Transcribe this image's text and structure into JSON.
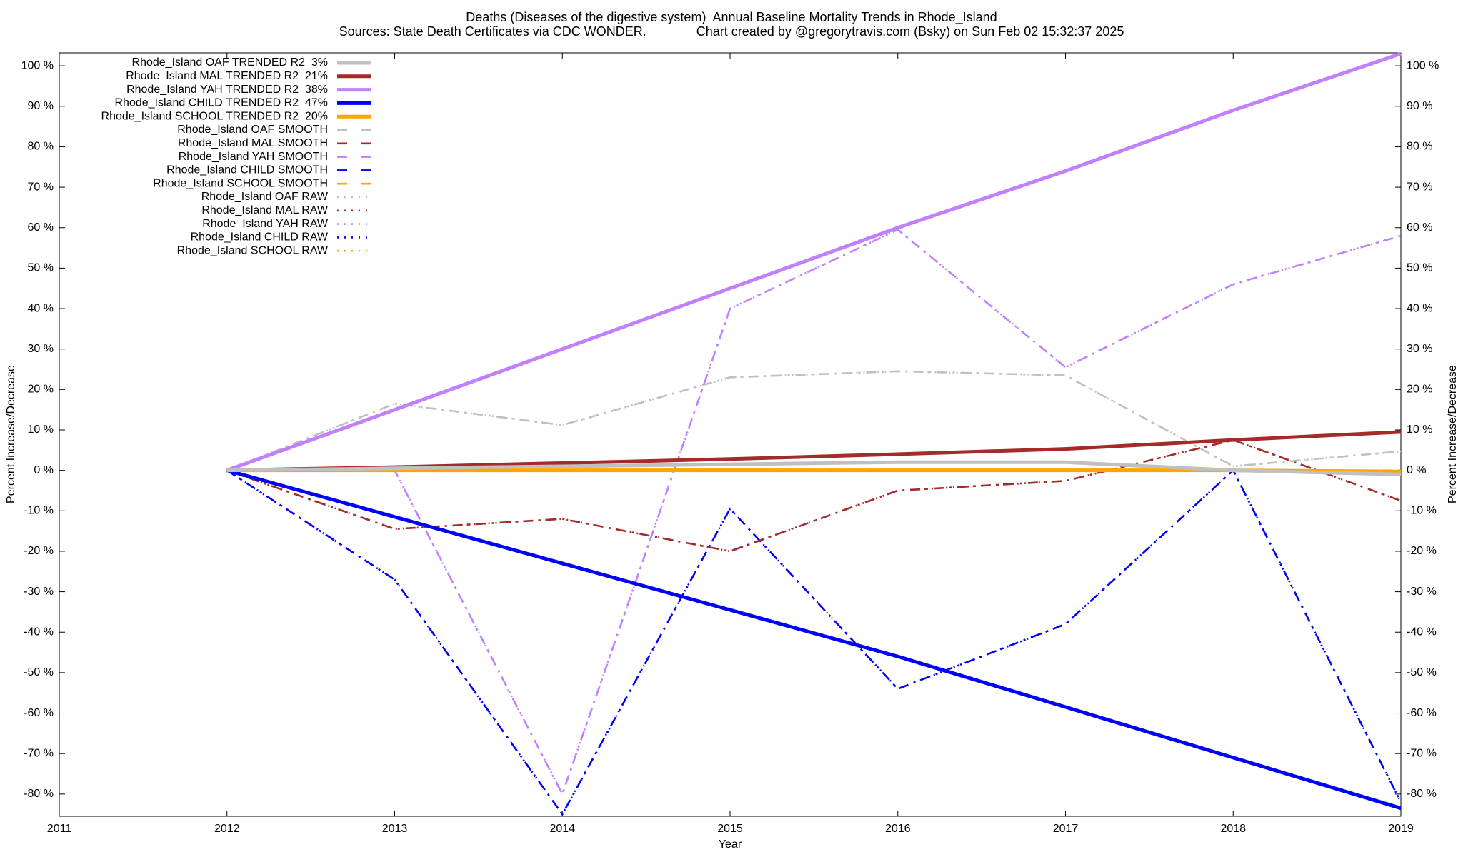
{
  "chart_data": {
    "type": "line",
    "title": "Deaths (Diseases of the digestive system)  Annual Baseline Mortality Trends in Rhode_Island",
    "subtitle": "Sources: State Death Certificates via CDC WONDER.              Chart created by @gregorytravis.com (Bsky) on Sun Feb 02 15:32:37 2025",
    "xlabel": "Year",
    "ylabel": "Percent Increase/Decrease",
    "x": [
      2012,
      2013,
      2014,
      2015,
      2016,
      2017,
      2018,
      2019
    ],
    "xlim": [
      2011,
      2019
    ],
    "xticks": [
      2011,
      2012,
      2013,
      2014,
      2015,
      2016,
      2017,
      2018,
      2019
    ],
    "ylim": [
      -85.5,
      103.2
    ],
    "yticks": [
      {
        "value": -80,
        "label": "-80 %"
      },
      {
        "value": -70,
        "label": "-70 %"
      },
      {
        "value": -60,
        "label": "-60 %"
      },
      {
        "value": -50,
        "label": "-50 %"
      },
      {
        "value": -40,
        "label": "-40 %"
      },
      {
        "value": -30,
        "label": "-30 %"
      },
      {
        "value": -20,
        "label": "-20 %"
      },
      {
        "value": -10,
        "label": "-10 %"
      },
      {
        "value": 0,
        "label": "0 %"
      },
      {
        "value": 10,
        "label": "10 %"
      },
      {
        "value": 20,
        "label": "20 %"
      },
      {
        "value": 30,
        "label": "30 %"
      },
      {
        "value": 40,
        "label": "40 %"
      },
      {
        "value": 50,
        "label": "50 %"
      },
      {
        "value": 60,
        "label": "60 %"
      },
      {
        "value": 70,
        "label": "70 %"
      },
      {
        "value": 80,
        "label": "80 %"
      },
      {
        "value": 90,
        "label": "90 %"
      },
      {
        "value": 100,
        "label": "100 %"
      }
    ],
    "legend": "upper left",
    "series": [
      {
        "name": "Rhode_Island OAF TRENDED R2  3%",
        "color": "#c0c0c0",
        "style": "solid",
        "values": [
          0,
          0.5,
          1,
          1.5,
          2,
          2,
          0,
          -1
        ]
      },
      {
        "name": "Rhode_Island MAL TRENDED R2  21%",
        "color": "#a52a2a",
        "style": "solid",
        "values": [
          0,
          0.8,
          1.8,
          2.8,
          4,
          5.3,
          7.5,
          9.5
        ]
      },
      {
        "name": "Rhode_Island YAH TRENDED R2  38%",
        "color": "#c080ff",
        "style": "solid",
        "values": [
          0,
          15,
          30,
          45,
          60,
          74,
          89,
          103
        ]
      },
      {
        "name": "Rhode_Island CHILD TRENDED R2  47%",
        "color": "#0000ff",
        "style": "solid",
        "values": [
          0,
          -11.5,
          -23,
          -34.5,
          -46,
          -58.5,
          -71,
          -83.5
        ]
      },
      {
        "name": "Rhode_Island SCHOOL TRENDED R2  20%",
        "color": "#ffa500",
        "style": "solid",
        "values": [
          0,
          0,
          0,
          0,
          0,
          0,
          0,
          -0.3
        ]
      },
      {
        "name": "Rhode_Island OAF SMOOTH",
        "color": "#c0c0c0",
        "style": "dash",
        "values": [
          0,
          16.5,
          11.2,
          23,
          24.5,
          23.5,
          1,
          4.7
        ]
      },
      {
        "name": "Rhode_Island MAL SMOOTH",
        "color": "#a52a2a",
        "style": "dash",
        "values": [
          0,
          -14.5,
          -12,
          -20,
          -5,
          -2.6,
          7.5,
          -7.5
        ]
      },
      {
        "name": "Rhode_Island YAH SMOOTH",
        "color": "#c080ff",
        "style": "dash",
        "values": [
          0,
          0,
          -80,
          40,
          59.5,
          25.5,
          46,
          58
        ]
      },
      {
        "name": "Rhode_Island CHILD SMOOTH",
        "color": "#0000ff",
        "style": "dash",
        "values": [
          0,
          -27,
          -85,
          -9.5,
          -54,
          -38,
          0,
          -82
        ]
      },
      {
        "name": "Rhode_Island SCHOOL SMOOTH",
        "color": "#ffa500",
        "style": "dash",
        "values": [
          0,
          0,
          0,
          0,
          0,
          0,
          0,
          0
        ]
      },
      {
        "name": "Rhode_Island OAF RAW",
        "color": "#c0c0c0",
        "style": "dot",
        "values": [
          0,
          16.5,
          11.2,
          23,
          24.5,
          23.5,
          1,
          4.7
        ]
      },
      {
        "name": "Rhode_Island MAL RAW",
        "color": "#a52a2a",
        "style": "dot",
        "values": [
          0,
          -14.5,
          -12,
          -20,
          -5,
          -2.6,
          7.5,
          -7.5
        ]
      },
      {
        "name": "Rhode_Island YAH RAW",
        "color": "#c080ff",
        "style": "dot",
        "values": [
          0,
          0,
          -80,
          40,
          59.5,
          25.5,
          46,
          58
        ]
      },
      {
        "name": "Rhode_Island CHILD RAW",
        "color": "#0000ff",
        "style": "dot",
        "values": [
          0,
          -27,
          -85,
          -9.5,
          -54,
          -38,
          0,
          -82
        ]
      },
      {
        "name": "Rhode_Island SCHOOL RAW",
        "color": "#ffa500",
        "style": "dot",
        "values": [
          0,
          0,
          0,
          0,
          0,
          0,
          0,
          0
        ]
      }
    ]
  }
}
